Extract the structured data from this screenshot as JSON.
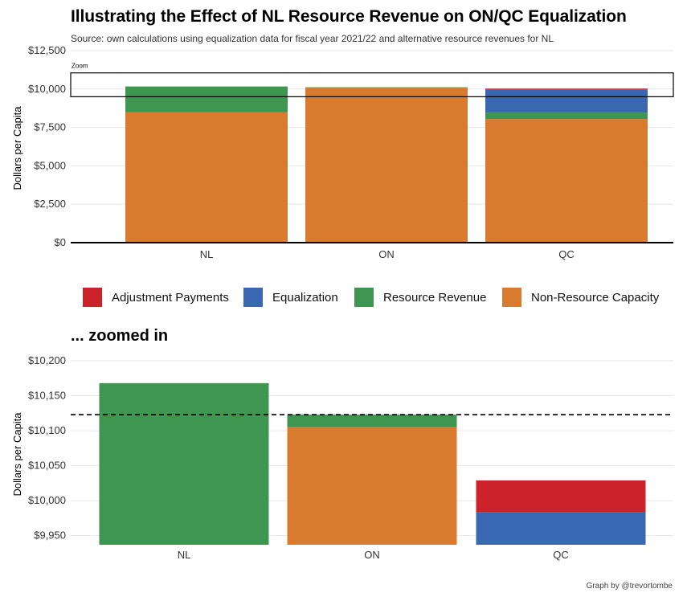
{
  "title": "Illustrating the Effect of NL Resource Revenue on ON/QC Equalization",
  "subtitle": "Source: own calculations using equalization data for fiscal year 2021/22 and alternative resource revenues for NL",
  "zoomed_title": "... zoomed in",
  "caption": "Graph by @trevortombe",
  "zoom_label": "Zoom",
  "colors": {
    "Adjustment Payments": "#cc2229",
    "Equalization": "#3a67b1",
    "Resource Revenue": "#3f9651",
    "Non-Resource Capacity": "#d97b2e"
  },
  "legend": [
    "Adjustment Payments",
    "Equalization",
    "Resource Revenue",
    "Non-Resource Capacity"
  ],
  "chart_data": [
    {
      "type": "bar",
      "stacked": true,
      "title": "Illustrating the Effect of NL Resource Revenue on ON/QC Equalization",
      "xlabel": "",
      "ylabel": "Dollars per Capita",
      "categories": [
        "NL",
        "ON",
        "QC"
      ],
      "ylim": [
        0,
        12500
      ],
      "yticks": [
        0,
        2500,
        5000,
        7500,
        10000,
        12500
      ],
      "ytick_labels": [
        "$0",
        "$2,500",
        "$5,000",
        "$7,500",
        "$10,000",
        "$12,500"
      ],
      "series": [
        {
          "name": "Non-Resource Capacity",
          "values": [
            8500,
            10105,
            8050
          ]
        },
        {
          "name": "Resource Revenue",
          "values": [
            1668,
            18,
            420
          ]
        },
        {
          "name": "Equalization",
          "values": [
            0,
            0,
            1513
          ]
        },
        {
          "name": "Adjustment Payments",
          "values": [
            0,
            0,
            45
          ]
        }
      ],
      "zoom_box": {
        "label": "Zoom",
        "y_from": 9500,
        "y_to": 11050
      }
    },
    {
      "type": "bar",
      "stacked": true,
      "title": "... zoomed in",
      "xlabel": "",
      "ylabel": "Dollars per Capita",
      "categories": [
        "NL",
        "ON",
        "QC"
      ],
      "ylim": [
        9937,
        10200
      ],
      "yticks": [
        9950,
        10000,
        10050,
        10100,
        10150,
        10200
      ],
      "ytick_labels": [
        "$9,950",
        "$10,000",
        "$10,050",
        "$10,100",
        "$10,150",
        "$10,200"
      ],
      "bars": [
        {
          "category": "NL",
          "segments": [
            {
              "name": "Resource Revenue",
              "from": 9937,
              "to": 10168
            }
          ]
        },
        {
          "category": "ON",
          "segments": [
            {
              "name": "Non-Resource Capacity",
              "from": 9937,
              "to": 10105
            },
            {
              "name": "Resource Revenue",
              "from": 10105,
              "to": 10123
            }
          ]
        },
        {
          "category": "QC",
          "segments": [
            {
              "name": "Equalization",
              "from": 9937,
              "to": 9984
            },
            {
              "name": "Adjustment Payments",
              "from": 9984,
              "to": 10029
            }
          ]
        }
      ],
      "reference_line": {
        "value": 10123,
        "style": "dashed"
      }
    }
  ]
}
